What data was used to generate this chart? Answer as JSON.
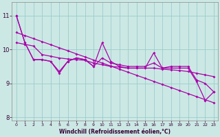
{
  "xlabel": "Windchill (Refroidissement éolien,°C)",
  "background_color": "#cce8e4",
  "line_color": "#aa00aa",
  "grid_color": "#99cccc",
  "hours": [
    0,
    1,
    2,
    3,
    4,
    5,
    6,
    7,
    8,
    9,
    10,
    11,
    12,
    13,
    14,
    15,
    16,
    17,
    18,
    19,
    20,
    21,
    22,
    23
  ],
  "wc_spiky": [
    11.0,
    10.2,
    9.7,
    9.7,
    9.65,
    9.3,
    9.65,
    9.75,
    9.7,
    9.5,
    10.2,
    9.65,
    9.5,
    9.45,
    9.45,
    9.45,
    9.9,
    9.45,
    9.45,
    9.45,
    9.45,
    9.05,
    8.5,
    8.75
  ],
  "temp_line": [
    11.0,
    10.2,
    9.7,
    9.7,
    9.65,
    9.35,
    9.65,
    9.75,
    9.7,
    9.5,
    9.75,
    9.6,
    9.55,
    9.5,
    9.5,
    9.5,
    9.6,
    9.45,
    9.5,
    9.5,
    9.5,
    9.1,
    9.0,
    8.75
  ],
  "trend_line": [
    10.5,
    10.41,
    10.32,
    10.23,
    10.14,
    10.05,
    9.96,
    9.87,
    9.78,
    9.69,
    9.6,
    9.51,
    9.42,
    9.33,
    9.24,
    9.15,
    9.06,
    8.97,
    8.88,
    8.79,
    8.7,
    8.61,
    8.52,
    8.43
  ],
  "smooth2": [
    10.2,
    10.15,
    10.1,
    9.85,
    9.8,
    9.75,
    9.72,
    9.7,
    9.68,
    9.6,
    9.55,
    9.5,
    9.48,
    9.45,
    9.45,
    9.45,
    9.45,
    9.42,
    9.4,
    9.38,
    9.35,
    9.3,
    9.25,
    9.2
  ],
  "ylim": [
    7.9,
    11.4
  ],
  "yticks": [
    8,
    9,
    10,
    11
  ],
  "xtick_labels": [
    "0",
    "1",
    "2",
    "3",
    "4",
    "5",
    "6",
    "7",
    "8",
    "9",
    "10",
    "11",
    "12",
    "13",
    "14",
    "15",
    "16",
    "17",
    "18",
    "19",
    "20",
    "21",
    "22",
    "23"
  ]
}
